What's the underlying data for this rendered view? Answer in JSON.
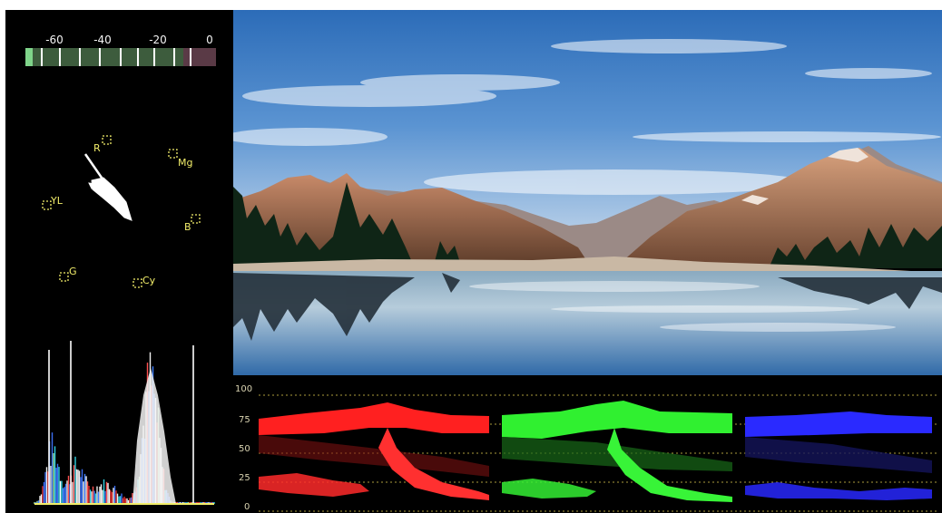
{
  "audio_meter": {
    "scale_labels": [
      "-60",
      "-40",
      "-20",
      "0"
    ]
  },
  "vectorscope": {
    "targets": [
      "R",
      "Mg",
      "YL",
      "B",
      "G",
      "Cy"
    ]
  },
  "waveform": {
    "scale_labels": [
      "100",
      "75",
      "50",
      "25",
      "0"
    ],
    "channels": [
      "red",
      "green",
      "blue"
    ]
  },
  "colors": {
    "label_yellow": "#f2ee6a",
    "grid_yellow": "#d8c24a",
    "red_trace": "#ff2020",
    "green_trace": "#30f030",
    "blue_trace": "#2a2aff"
  }
}
